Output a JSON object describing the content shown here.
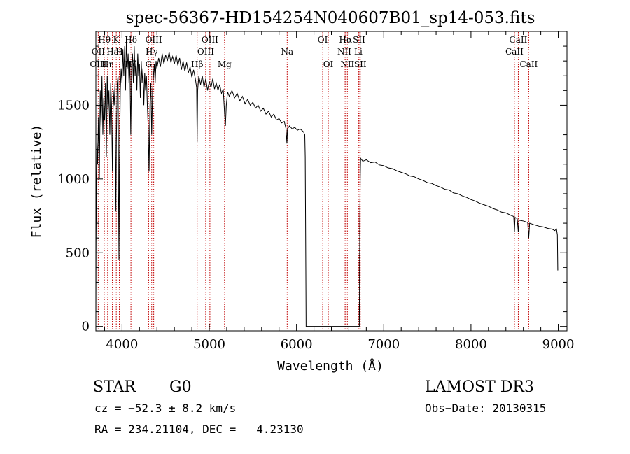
{
  "chart_data": {
    "type": "line",
    "title": "spec-56367-HD154254N040607B01_sp14-053.fits",
    "xlabel": "Wavelength (Å)",
    "ylabel": "Flux (relative)",
    "xlim": [
      3700,
      9100
    ],
    "ylim": [
      -30,
      2000
    ],
    "xticks": [
      4000,
      5000,
      6000,
      7000,
      8000,
      9000
    ],
    "yticks": [
      0,
      500,
      1000,
      1500
    ],
    "grid": false,
    "series": [
      {
        "name": "flux",
        "points": [
          [
            3700,
            0
          ],
          [
            3702,
            560
          ],
          [
            3706,
            900
          ],
          [
            3712,
            1250
          ],
          [
            3720,
            1100
          ],
          [
            3730,
            1420
          ],
          [
            3740,
            1000
          ],
          [
            3750,
            1600
          ],
          [
            3760,
            1350
          ],
          [
            3770,
            1700
          ],
          [
            3780,
            1300
          ],
          [
            3790,
            1550
          ],
          [
            3800,
            1400
          ],
          [
            3810,
            1650
          ],
          [
            3820,
            1150
          ],
          [
            3830,
            1700
          ],
          [
            3840,
            1450
          ],
          [
            3850,
            1600
          ],
          [
            3860,
            1300
          ],
          [
            3870,
            1650
          ],
          [
            3880,
            1500
          ],
          [
            3890,
            1050
          ],
          [
            3900,
            1600
          ],
          [
            3910,
            1500
          ],
          [
            3920,
            1650
          ],
          [
            3925,
            1100
          ],
          [
            3930,
            780
          ],
          [
            3935,
            1250
          ],
          [
            3945,
            1650
          ],
          [
            3955,
            1700
          ],
          [
            3960,
            900
          ],
          [
            3965,
            450
          ],
          [
            3970,
            1050
          ],
          [
            3980,
            1600
          ],
          [
            3990,
            1750
          ],
          [
            4000,
            1650
          ],
          [
            4010,
            1880
          ],
          [
            4020,
            1700
          ],
          [
            4030,
            1900
          ],
          [
            4040,
            1600
          ],
          [
            4050,
            1950
          ],
          [
            4060,
            1750
          ],
          [
            4070,
            1850
          ],
          [
            4080,
            1650
          ],
          [
            4090,
            1800
          ],
          [
            4100,
            1300
          ],
          [
            4110,
            1750
          ],
          [
            4120,
            1850
          ],
          [
            4130,
            1650
          ],
          [
            4140,
            1900
          ],
          [
            4150,
            1700
          ],
          [
            4160,
            1800
          ],
          [
            4170,
            1600
          ],
          [
            4180,
            1850
          ],
          [
            4190,
            1700
          ],
          [
            4200,
            1780
          ],
          [
            4210,
            1550
          ],
          [
            4220,
            1800
          ],
          [
            4230,
            1650
          ],
          [
            4240,
            1750
          ],
          [
            4250,
            1500
          ],
          [
            4260,
            1720
          ],
          [
            4270,
            1600
          ],
          [
            4280,
            1700
          ],
          [
            4290,
            1500
          ],
          [
            4300,
            1350
          ],
          [
            4310,
            1050
          ],
          [
            4320,
            1500
          ],
          [
            4330,
            1650
          ],
          [
            4340,
            1300
          ],
          [
            4350,
            1600
          ],
          [
            4360,
            1700
          ],
          [
            4370,
            1780
          ],
          [
            4380,
            1650
          ],
          [
            4390,
            1800
          ],
          [
            4400,
            1750
          ],
          [
            4420,
            1820
          ],
          [
            4440,
            1760
          ],
          [
            4460,
            1850
          ],
          [
            4480,
            1780
          ],
          [
            4500,
            1840
          ],
          [
            4520,
            1800
          ],
          [
            4540,
            1860
          ],
          [
            4560,
            1790
          ],
          [
            4580,
            1830
          ],
          [
            4600,
            1780
          ],
          [
            4620,
            1840
          ],
          [
            4640,
            1770
          ],
          [
            4660,
            1820
          ],
          [
            4680,
            1740
          ],
          [
            4700,
            1800
          ],
          [
            4720,
            1730
          ],
          [
            4740,
            1790
          ],
          [
            4760,
            1720
          ],
          [
            4780,
            1760
          ],
          [
            4800,
            1690
          ],
          [
            4820,
            1740
          ],
          [
            4840,
            1680
          ],
          [
            4855,
            1620
          ],
          [
            4861,
            1250
          ],
          [
            4867,
            1600
          ],
          [
            4880,
            1700
          ],
          [
            4900,
            1640
          ],
          [
            4920,
            1700
          ],
          [
            4940,
            1620
          ],
          [
            4960,
            1680
          ],
          [
            4980,
            1600
          ],
          [
            5000,
            1660
          ],
          [
            5020,
            1620
          ],
          [
            5040,
            1680
          ],
          [
            5060,
            1610
          ],
          [
            5080,
            1650
          ],
          [
            5100,
            1600
          ],
          [
            5120,
            1640
          ],
          [
            5140,
            1580
          ],
          [
            5160,
            1610
          ],
          [
            5175,
            1450
          ],
          [
            5185,
            1360
          ],
          [
            5195,
            1500
          ],
          [
            5210,
            1590
          ],
          [
            5230,
            1560
          ],
          [
            5260,
            1600
          ],
          [
            5290,
            1550
          ],
          [
            5320,
            1580
          ],
          [
            5350,
            1530
          ],
          [
            5380,
            1560
          ],
          [
            5410,
            1510
          ],
          [
            5440,
            1540
          ],
          [
            5470,
            1500
          ],
          [
            5500,
            1520
          ],
          [
            5530,
            1480
          ],
          [
            5560,
            1500
          ],
          [
            5590,
            1460
          ],
          [
            5620,
            1480
          ],
          [
            5650,
            1440
          ],
          [
            5680,
            1460
          ],
          [
            5710,
            1420
          ],
          [
            5740,
            1440
          ],
          [
            5770,
            1400
          ],
          [
            5800,
            1410
          ],
          [
            5830,
            1380
          ],
          [
            5860,
            1390
          ],
          [
            5880,
            1340
          ],
          [
            5890,
            1240
          ],
          [
            5897,
            1340
          ],
          [
            5920,
            1360
          ],
          [
            5950,
            1340
          ],
          [
            5980,
            1350
          ],
          [
            6010,
            1330
          ],
          [
            6040,
            1340
          ],
          [
            6060,
            1330
          ],
          [
            6080,
            1320
          ],
          [
            6095,
            1300
          ],
          [
            6100,
            1150
          ],
          [
            6105,
            600
          ],
          [
            6108,
            250
          ],
          [
            6110,
            0
          ],
          [
            6720,
            0
          ],
          [
            6725,
            600
          ],
          [
            6730,
            1000
          ],
          [
            6735,
            1140
          ],
          [
            6760,
            1120
          ],
          [
            6800,
            1130
          ],
          [
            6850,
            1110
          ],
          [
            6900,
            1115
          ],
          [
            6950,
            1095
          ],
          [
            7000,
            1090
          ],
          [
            7050,
            1075
          ],
          [
            7100,
            1070
          ],
          [
            7150,
            1055
          ],
          [
            7200,
            1045
          ],
          [
            7250,
            1035
          ],
          [
            7300,
            1020
          ],
          [
            7350,
            1015
          ],
          [
            7400,
            1000
          ],
          [
            7450,
            990
          ],
          [
            7500,
            975
          ],
          [
            7550,
            970
          ],
          [
            7600,
            955
          ],
          [
            7650,
            945
          ],
          [
            7700,
            930
          ],
          [
            7750,
            925
          ],
          [
            7800,
            905
          ],
          [
            7850,
            900
          ],
          [
            7900,
            885
          ],
          [
            7950,
            875
          ],
          [
            8000,
            860
          ],
          [
            8050,
            850
          ],
          [
            8100,
            835
          ],
          [
            8150,
            825
          ],
          [
            8200,
            815
          ],
          [
            8250,
            800
          ],
          [
            8300,
            790
          ],
          [
            8350,
            775
          ],
          [
            8400,
            770
          ],
          [
            8450,
            755
          ],
          [
            8490,
            745
          ],
          [
            8498,
            640
          ],
          [
            8505,
            740
          ],
          [
            8530,
            730
          ],
          [
            8542,
            640
          ],
          [
            8550,
            720
          ],
          [
            8600,
            715
          ],
          [
            8650,
            705
          ],
          [
            8662,
            600
          ],
          [
            8672,
            700
          ],
          [
            8720,
            690
          ],
          [
            8780,
            680
          ],
          [
            8830,
            675
          ],
          [
            8880,
            665
          ],
          [
            8930,
            660
          ],
          [
            8960,
            650
          ],
          [
            8980,
            660
          ],
          [
            8990,
            620
          ],
          [
            8995,
            380
          ]
        ]
      }
    ],
    "lines": [
      {
        "label": "Hθ",
        "x": 3797,
        "row": 0
      },
      {
        "label": "OII",
        "x": 3727,
        "row": 1
      },
      {
        "label": "OIII",
        "x": 3727,
        "row": 2
      },
      {
        "label": "K",
        "x": 3934,
        "row": 0
      },
      {
        "label": "Hε",
        "x": 3889,
        "row": 1
      },
      {
        "label": "Hη",
        "x": 3835,
        "row": 2
      },
      {
        "label": "H",
        "x": 3969,
        "row": 1
      },
      {
        "label": "Hζ",
        "x": 4102,
        "row": 2
      },
      {
        "label": "Hδ",
        "x": 4102,
        "row": 0
      },
      {
        "label": "OIII",
        "x": 4363,
        "row": 0
      },
      {
        "label": "Hγ",
        "x": 4340,
        "row": 1
      },
      {
        "label": "G",
        "x": 4305,
        "row": 2
      },
      {
        "label": "OIII",
        "x": 5007,
        "row": 0
      },
      {
        "label": "OIII",
        "x": 4959,
        "row": 1
      },
      {
        "label": "Hβ",
        "x": 4861,
        "row": 2
      },
      {
        "label": "Mg",
        "x": 5175,
        "row": 2
      },
      {
        "label": "Na",
        "x": 5893,
        "row": 1
      },
      {
        "label": "OI",
        "x": 6300,
        "row": 0
      },
      {
        "label": "OI",
        "x": 6364,
        "row": 2
      },
      {
        "label": "Hα",
        "x": 6563,
        "row": 0
      },
      {
        "label": "NII",
        "x": 6548,
        "row": 1
      },
      {
        "label": "NII",
        "x": 6583,
        "row": 2
      },
      {
        "label": "SII",
        "x": 6717,
        "row": 0
      },
      {
        "label": "Li",
        "x": 6708,
        "row": 1
      },
      {
        "label": "SII",
        "x": 6731,
        "row": 2
      },
      {
        "label": "CaII",
        "x": 8542,
        "row": 0
      },
      {
        "label": "CaII",
        "x": 8498,
        "row": 1
      },
      {
        "label": "CaII",
        "x": 8662,
        "row": 2
      }
    ]
  },
  "info": {
    "class": "STAR",
    "subclass": "G0",
    "survey": "LAMOST DR3",
    "cz": "cz = −52.3 ± 8.2 km/s",
    "obs_date": "Obs−Date: 20130315",
    "radec": "RA = 234.21104, DEC =   4.23130"
  }
}
